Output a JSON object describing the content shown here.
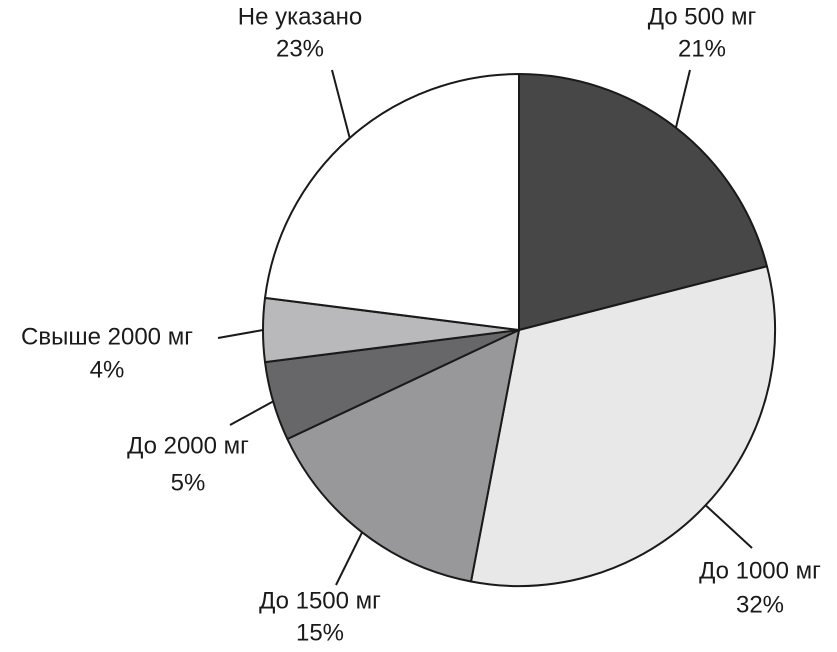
{
  "chart_data": {
    "type": "pie",
    "categories": [
      "До 500 мг",
      "До 1000 мг",
      "До 1500 мг",
      "До 2000 мг",
      "Свыше 2000 мг",
      "Не указано"
    ],
    "values": [
      21,
      32,
      15,
      5,
      4,
      23
    ],
    "value_labels": [
      "21%",
      "32%",
      "15%",
      "5%",
      "4%",
      "23%"
    ],
    "colors": [
      "#474748",
      "#e8e8e9",
      "#98989b",
      "#676769",
      "#b9b9bb",
      "#ffffff"
    ]
  }
}
